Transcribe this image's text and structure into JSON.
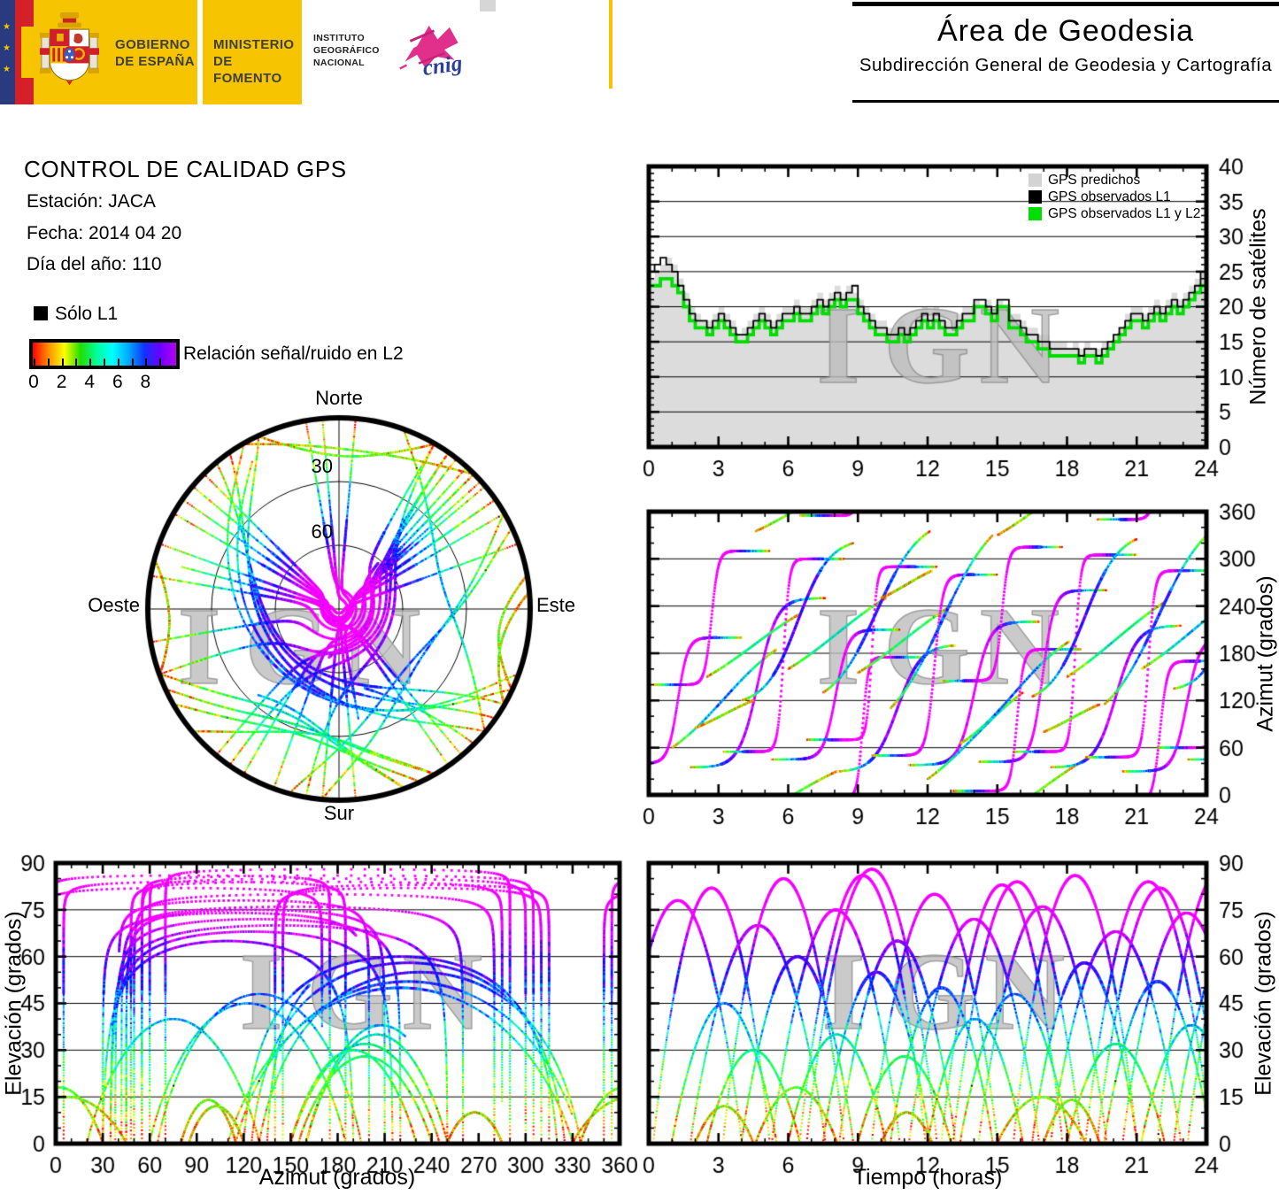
{
  "header": {
    "gobierno": {
      "l1": "GOBIERNO",
      "l2": "DE ESPAÑA"
    },
    "ministerio": {
      "l1": "MINISTERIO",
      "l2": "DE FOMENTO"
    },
    "instituto": {
      "l1": "INSTITUTO",
      "l2": "GEOGRÁFICO",
      "l3": "NACIONAL"
    },
    "cnig_text": "cnig",
    "area_title": "Área de Geodesia",
    "area_subtitle": "Subdirección General de Geodesia y Cartografía"
  },
  "info": {
    "title": "CONTROL DE CALIDAD GPS",
    "station_label": "Estación: JACA",
    "date_label": "Fecha: 2014 04 20",
    "doy_label": "Día del año: 110"
  },
  "snr_legend": {
    "solo_l1_label": "Sólo L1",
    "colorbar_label": "Relación señal/ruido en L2",
    "colorbar_tick_values": [
      0,
      2,
      4,
      6,
      8
    ],
    "colorbar_minor_tick_count": 10,
    "colorbar_range": [
      0,
      9
    ],
    "colorbar_colors": [
      "#ff0000",
      "#ff9100",
      "#fbff00",
      "#22dd00",
      "#00ff99",
      "#00ffff",
      "#00aaff",
      "#1133ff",
      "#6a00ff",
      "#b400f0"
    ]
  },
  "skyplot": {
    "labels": {
      "north": "Norte",
      "south": "Sur",
      "east": "Este",
      "west": "Oeste"
    },
    "ring_labels": [
      "30",
      "60"
    ],
    "elevation_rings_deg": [
      30,
      60
    ]
  },
  "watermark_text": "IGN",
  "chart_data": [
    {
      "id": "satellites-vs-time",
      "type": "area",
      "ylabel": "Número de satélites",
      "xlim": [
        0,
        24
      ],
      "ylim": [
        0,
        40
      ],
      "xticks": [
        0,
        3,
        6,
        9,
        12,
        15,
        18,
        21,
        24
      ],
      "yticks": [
        0,
        5,
        10,
        15,
        20,
        25,
        30,
        35,
        40
      ],
      "x_step_hours": 0.25,
      "legend": [
        "GPS predichos",
        "GPS observados L1",
        "GPS observados L1 y L2"
      ],
      "legend_colors": [
        "#d3d3d3",
        "#000000",
        "#00dd00"
      ],
      "series": {
        "predichos": [
          24,
          25,
          26,
          27,
          26,
          24,
          22,
          20,
          19,
          18,
          18,
          19,
          20,
          19,
          18,
          16,
          17,
          18,
          19,
          20,
          19,
          18,
          19,
          20,
          20,
          21,
          20,
          20,
          21,
          22,
          21,
          22,
          23,
          22,
          23,
          22,
          21,
          20,
          19,
          18,
          18,
          17,
          17,
          18,
          17,
          18,
          19,
          20,
          19,
          20,
          19,
          18,
          18,
          19,
          20,
          20,
          21,
          20,
          21,
          20,
          21,
          20,
          19,
          19,
          18,
          17,
          17,
          16,
          16,
          15,
          15,
          15,
          14,
          15,
          14,
          15,
          14,
          14,
          15,
          15,
          16,
          17,
          19,
          20,
          20,
          19,
          20,
          21,
          20,
          21,
          22,
          21,
          22,
          23,
          24,
          25,
          25
        ],
        "observados_l1": [
          25,
          26,
          27,
          26,
          25,
          23,
          21,
          19,
          18,
          18,
          17,
          18,
          19,
          18,
          17,
          16,
          16,
          17,
          18,
          19,
          18,
          17,
          18,
          19,
          19,
          20,
          19,
          19,
          20,
          21,
          20,
          21,
          22,
          21,
          22,
          23,
          20,
          19,
          18,
          17,
          17,
          16,
          16,
          17,
          16,
          17,
          18,
          19,
          18,
          19,
          18,
          17,
          17,
          18,
          19,
          19,
          21,
          21,
          20,
          19,
          21,
          21,
          18,
          18,
          17,
          16,
          16,
          15,
          15,
          14,
          14,
          14,
          14,
          14,
          13,
          14,
          14,
          13,
          14,
          15,
          16,
          17,
          18,
          19,
          19,
          18,
          19,
          20,
          19,
          20,
          21,
          20,
          21,
          22,
          23,
          25,
          25
        ],
        "observados_l1_y_l2": [
          23,
          23,
          24,
          24,
          23,
          22,
          20,
          18,
          17,
          17,
          16,
          17,
          18,
          17,
          16,
          15,
          15,
          16,
          17,
          18,
          17,
          16,
          17,
          18,
          18,
          19,
          18,
          18,
          19,
          20,
          19,
          20,
          21,
          20,
          21,
          21,
          19,
          18,
          17,
          16,
          16,
          15,
          15,
          16,
          15,
          16,
          17,
          18,
          17,
          18,
          17,
          16,
          16,
          17,
          18,
          18,
          20,
          20,
          19,
          18,
          20,
          20,
          17,
          17,
          16,
          15,
          15,
          14,
          14,
          13,
          13,
          13,
          13,
          13,
          12,
          13,
          13,
          12,
          13,
          14,
          15,
          16,
          17,
          18,
          18,
          17,
          18,
          19,
          18,
          19,
          20,
          19,
          20,
          21,
          22,
          23,
          23
        ]
      }
    },
    {
      "id": "azimuth-vs-time",
      "type": "scatter",
      "ylabel": "Azimut (grados)",
      "xlim": [
        0,
        24
      ],
      "ylim": [
        0,
        360
      ],
      "xticks": [
        0,
        3,
        6,
        9,
        12,
        15,
        18,
        21,
        24
      ],
      "yticks": [
        0,
        60,
        120,
        180,
        240,
        300,
        360
      ],
      "source": "satellite_passes"
    },
    {
      "id": "elevation-vs-azimuth",
      "type": "scatter",
      "xlabel": "Azimut (grados)",
      "ylabel": "Elevación (grados)",
      "xlim": [
        0,
        360
      ],
      "ylim": [
        0,
        90
      ],
      "xticks": [
        0,
        30,
        60,
        90,
        120,
        150,
        180,
        210,
        240,
        270,
        300,
        330,
        360
      ],
      "yticks": [
        0,
        15,
        30,
        45,
        60,
        75,
        90
      ],
      "source": "satellite_passes"
    },
    {
      "id": "elevation-vs-time",
      "type": "scatter",
      "xlabel": "Tiempo (horas)",
      "ylabel": "Elevación (grados)",
      "xlim": [
        0,
        24
      ],
      "ylim": [
        0,
        90
      ],
      "xticks": [
        0,
        3,
        6,
        9,
        12,
        15,
        18,
        21,
        24
      ],
      "yticks": [
        0,
        15,
        30,
        45,
        60,
        75,
        90
      ],
      "source": "satellite_passes"
    }
  ],
  "satellite_passes": {
    "columns": [
      "start_hour",
      "duration_hours",
      "azimuth_rise_deg",
      "azimuth_set_deg",
      "via_north",
      "max_elevation_deg"
    ],
    "passes": [
      [
        -1.5,
        5.5,
        40,
        200,
        0,
        78
      ],
      [
        0.2,
        5.0,
        140,
        310,
        0,
        82
      ],
      [
        1.0,
        4.5,
        60,
        185,
        0,
        45
      ],
      [
        1.8,
        5.8,
        35,
        250,
        0,
        70
      ],
      [
        2.5,
        4.0,
        150,
        230,
        0,
        30
      ],
      [
        3.2,
        5.2,
        55,
        300,
        0,
        85
      ],
      [
        4.0,
        4.8,
        120,
        320,
        0,
        60
      ],
      [
        4.6,
        3.5,
        335,
        30,
        1,
        18
      ],
      [
        5.3,
        5.5,
        45,
        210,
        0,
        75
      ],
      [
        6.0,
        4.2,
        160,
        250,
        0,
        35
      ],
      [
        6.5,
        5.4,
        355,
        175,
        1,
        86
      ],
      [
        6.8,
        5.6,
        70,
        290,
        0,
        88
      ],
      [
        7.5,
        4.6,
        130,
        335,
        0,
        55
      ],
      [
        8.2,
        5.0,
        30,
        190,
        0,
        65
      ],
      [
        9.0,
        4.0,
        155,
        240,
        0,
        28
      ],
      [
        9.6,
        5.4,
        50,
        280,
        0,
        80
      ],
      [
        10.4,
        4.4,
        110,
        330,
        0,
        50
      ],
      [
        11.2,
        5.6,
        38,
        220,
        0,
        72
      ],
      [
        12.0,
        4.1,
        20,
        130,
        0,
        40
      ],
      [
        12.6,
        5.2,
        145,
        315,
        0,
        83
      ],
      [
        13.1,
        5.5,
        5,
        185,
        0,
        84
      ],
      [
        13.4,
        4.7,
        65,
        195,
        0,
        48
      ],
      [
        14.2,
        5.5,
        42,
        260,
        0,
        76
      ],
      [
        15.0,
        3.8,
        330,
        45,
        1,
        15
      ],
      [
        15.7,
        5.3,
        55,
        305,
        0,
        86
      ],
      [
        16.5,
        4.5,
        125,
        325,
        0,
        58
      ],
      [
        17.3,
        5.6,
        35,
        215,
        0,
        68
      ],
      [
        18.0,
        4.2,
        150,
        245,
        0,
        32
      ],
      [
        18.8,
        5.4,
        48,
        285,
        0,
        84
      ],
      [
        19.3,
        5.4,
        350,
        170,
        1,
        82
      ],
      [
        19.6,
        4.6,
        115,
        335,
        0,
        52
      ],
      [
        20.4,
        5.5,
        30,
        200,
        0,
        74
      ],
      [
        21.2,
        4.3,
        160,
        255,
        0,
        38
      ],
      [
        21.9,
        5.3,
        60,
        300,
        0,
        87
      ],
      [
        22.6,
        4.8,
        135,
        320,
        0,
        62
      ],
      [
        23.2,
        5.0,
        45,
        225,
        0,
        77
      ],
      [
        2.0,
        2.5,
        85,
        120,
        0,
        12
      ],
      [
        10.0,
        2.2,
        250,
        285,
        0,
        10
      ],
      [
        17.0,
        2.4,
        80,
        115,
        0,
        14
      ]
    ]
  }
}
